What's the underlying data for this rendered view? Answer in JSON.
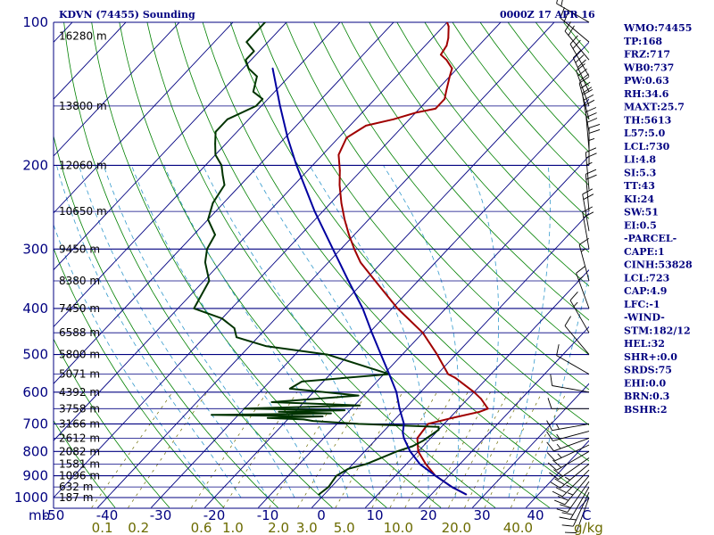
{
  "header": {
    "station": "KDVN (74455) Sounding",
    "time": "0000Z 17 APR 16"
  },
  "indices": [
    "WMO:74455",
    "TP:168",
    "FRZ:717",
    "WB0:737",
    "PW:0.63",
    "RH:34.6",
    "MAXT:25.7",
    "TH:5613",
    "L57:5.0",
    "LCL:730",
    "LI:4.8",
    "SI:5.3",
    "TT:43",
    "KI:24",
    "SW:51",
    "EI:0.5",
    "-PARCEL-",
    "CAPE:1",
    "CINH:53828",
    "LCL:723",
    "CAP:4.9",
    "LFC:-1",
    "-WIND-",
    "STM:182/12",
    "HEL:32",
    "SHR+:0.0",
    "SRDS:75",
    "EHI:0.0",
    "BRN:0.3",
    "BSHR:2"
  ],
  "colors": {
    "isobar": "#000080",
    "isotherm": "#000080",
    "dry_adiabat": "#008000",
    "moist_adiabat": "#3399cc",
    "mixing_ratio": "#6b6b00",
    "temperature": "#a00000",
    "dewpoint": "#003300",
    "parcel": "#0000a0",
    "wind": "#000000"
  },
  "chart_data": {
    "type": "line",
    "diagram": "skew-T log-P",
    "x_unit_label": "mb",
    "pressure_ticks": [
      100,
      200,
      300,
      400,
      500,
      600,
      700,
      800,
      900,
      1000
    ],
    "temperature_ticks": [
      -50,
      -40,
      -30,
      -20,
      -10,
      0,
      10,
      20,
      30,
      40
    ],
    "temperature_tick_labels": [
      "-50",
      "-40",
      "-30",
      "-20",
      "-10",
      "0",
      "10",
      "20",
      "30",
      "40"
    ],
    "temperature_unit": "C",
    "xlim": [
      -50,
      50
    ],
    "ylim": [
      1000,
      100
    ],
    "mixing_ratio_ticks": [
      "0.1",
      "0.2",
      "0.6",
      "1.0",
      "2.0",
      "3.0",
      "5.0",
      "10.0",
      "20.0",
      "40.0"
    ],
    "mixing_ratio_unit": "g/kg",
    "height_labels": [
      {
        "p": 107,
        "label": "16280 m"
      },
      {
        "p": 150,
        "label": "13800 m"
      },
      {
        "p": 200,
        "label": "12060 m"
      },
      {
        "p": 250,
        "label": "10650 m"
      },
      {
        "p": 300,
        "label": "9450 m"
      },
      {
        "p": 350,
        "label": "8380 m"
      },
      {
        "p": 400,
        "label": "7450 m"
      },
      {
        "p": 450,
        "label": "6588 m"
      },
      {
        "p": 500,
        "label": "5800 m"
      },
      {
        "p": 550,
        "label": "5071 m"
      },
      {
        "p": 600,
        "label": "4392 m"
      },
      {
        "p": 650,
        "label": "3758 m"
      },
      {
        "p": 700,
        "label": "3166 m"
      },
      {
        "p": 750,
        "label": "2612 m"
      },
      {
        "p": 800,
        "label": "2082 m"
      },
      {
        "p": 850,
        "label": "1581 m"
      },
      {
        "p": 900,
        "label": "1096 m"
      },
      {
        "p": 950,
        "label": "632 m"
      },
      {
        "p": 1000,
        "label": "187 m"
      }
    ],
    "series": [
      {
        "key": "temperature",
        "points": [
          [
            985,
            26.5
          ],
          [
            950,
            22.5
          ],
          [
            900,
            17.5
          ],
          [
            850,
            13.6
          ],
          [
            800,
            10.0
          ],
          [
            750,
            7.5
          ],
          [
            720,
            7.2
          ],
          [
            700,
            7.0
          ],
          [
            680,
            10.5
          ],
          [
            660,
            14.5
          ],
          [
            650,
            15.5
          ],
          [
            620,
            12.5
          ],
          [
            600,
            10.0
          ],
          [
            560,
            4.0
          ],
          [
            550,
            2.0
          ],
          [
            500,
            -3.5
          ],
          [
            450,
            -10.0
          ],
          [
            400,
            -19.0
          ],
          [
            350,
            -28.0
          ],
          [
            320,
            -34.0
          ],
          [
            300,
            -37.5
          ],
          [
            280,
            -41.0
          ],
          [
            260,
            -44.5
          ],
          [
            240,
            -48.0
          ],
          [
            220,
            -51.5
          ],
          [
            205,
            -54.0
          ],
          [
            190,
            -57.0
          ],
          [
            175,
            -58.5
          ],
          [
            165,
            -57.0
          ],
          [
            160,
            -53.0
          ],
          [
            155,
            -50.0
          ],
          [
            152,
            -47.0
          ],
          [
            145,
            -47.0
          ],
          [
            140,
            -48.0
          ],
          [
            130,
            -50.0
          ],
          [
            125,
            -51.0
          ],
          [
            120,
            -53.5
          ],
          [
            117,
            -55.5
          ],
          [
            112,
            -56.0
          ],
          [
            108,
            -57.0
          ],
          [
            102,
            -59.0
          ],
          [
            100,
            -60.0
          ]
        ]
      },
      {
        "key": "dewpoint",
        "points": [
          [
            985,
            -1.0
          ],
          [
            950,
            -0.5
          ],
          [
            900,
            -1.0
          ],
          [
            870,
            0.0
          ],
          [
            850,
            2.5
          ],
          [
            800,
            6.0
          ],
          [
            780,
            8.0
          ],
          [
            760,
            9.0
          ],
          [
            740,
            9.5
          ],
          [
            720,
            10.0
          ],
          [
            710,
            9.5
          ],
          [
            700,
            -6.0
          ],
          [
            690,
            -15.0
          ],
          [
            685,
            -17.0
          ],
          [
            680,
            -24.0
          ],
          [
            675,
            -14.0
          ],
          [
            670,
            -35.0
          ],
          [
            665,
            -13.0
          ],
          [
            660,
            -23.0
          ],
          [
            655,
            -11.0
          ],
          [
            650,
            -30.0
          ],
          [
            640,
            -9.0
          ],
          [
            630,
            -26.0
          ],
          [
            610,
            -11.0
          ],
          [
            590,
            -25.0
          ],
          [
            570,
            -24.0
          ],
          [
            550,
            -9.0
          ],
          [
            500,
            -24.0
          ],
          [
            480,
            -37.0
          ],
          [
            460,
            -44.0
          ],
          [
            440,
            -46.0
          ],
          [
            420,
            -50.0
          ],
          [
            400,
            -57.0
          ],
          [
            350,
            -59.0
          ],
          [
            320,
            -63.0
          ],
          [
            300,
            -65.0
          ],
          [
            280,
            -66.0
          ],
          [
            260,
            -70.0
          ],
          [
            240,
            -72.0
          ],
          [
            220,
            -73.0
          ],
          [
            210,
            -75.0
          ],
          [
            200,
            -77.0
          ],
          [
            190,
            -80.0
          ],
          [
            180,
            -82.0
          ],
          [
            170,
            -84.0
          ],
          [
            160,
            -84.0
          ],
          [
            150,
            -81.0
          ],
          [
            145,
            -81.0
          ],
          [
            140,
            -84.0
          ],
          [
            130,
            -86.0
          ],
          [
            125,
            -89.0
          ],
          [
            120,
            -91.0
          ],
          [
            115,
            -91.0
          ],
          [
            110,
            -94.0
          ],
          [
            105,
            -94.0
          ],
          [
            100,
            -94.0
          ]
        ]
      },
      {
        "key": "parcel",
        "points": [
          [
            985,
            26.5
          ],
          [
            950,
            22.5
          ],
          [
            900,
            17.5
          ],
          [
            850,
            12.5
          ],
          [
            800,
            8.5
          ],
          [
            750,
            5.0
          ],
          [
            730,
            3.8
          ],
          [
            700,
            2.5
          ],
          [
            650,
            -1.0
          ],
          [
            600,
            -4.5
          ],
          [
            550,
            -9.0
          ],
          [
            500,
            -14.0
          ],
          [
            450,
            -19.5
          ],
          [
            400,
            -25.5
          ],
          [
            350,
            -33.0
          ],
          [
            300,
            -41.5
          ],
          [
            250,
            -51.5
          ],
          [
            200,
            -63.0
          ],
          [
            175,
            -69.5
          ],
          [
            150,
            -76.5
          ],
          [
            125,
            -84.5
          ]
        ]
      }
    ],
    "wind_barbs": [
      {
        "p": 1000,
        "dir": 200,
        "spd": 10
      },
      {
        "p": 975,
        "dir": 205,
        "spd": 15
      },
      {
        "p": 950,
        "dir": 210,
        "spd": 20
      },
      {
        "p": 925,
        "dir": 215,
        "spd": 20
      },
      {
        "p": 900,
        "dir": 220,
        "spd": 25
      },
      {
        "p": 875,
        "dir": 225,
        "spd": 25
      },
      {
        "p": 850,
        "dir": 230,
        "spd": 25
      },
      {
        "p": 825,
        "dir": 235,
        "spd": 20
      },
      {
        "p": 800,
        "dir": 240,
        "spd": 20
      },
      {
        "p": 775,
        "dir": 245,
        "spd": 15
      },
      {
        "p": 750,
        "dir": 250,
        "spd": 15
      },
      {
        "p": 725,
        "dir": 255,
        "spd": 15
      },
      {
        "p": 700,
        "dir": 260,
        "spd": 15
      },
      {
        "p": 650,
        "dir": 270,
        "spd": 10
      },
      {
        "p": 600,
        "dir": 280,
        "spd": 10
      },
      {
        "p": 550,
        "dir": 300,
        "spd": 10
      },
      {
        "p": 500,
        "dir": 320,
        "spd": 10
      },
      {
        "p": 450,
        "dir": 330,
        "spd": 15
      },
      {
        "p": 400,
        "dir": 340,
        "spd": 15
      },
      {
        "p": 350,
        "dir": 345,
        "spd": 15
      },
      {
        "p": 300,
        "dir": 350,
        "spd": 20
      },
      {
        "p": 275,
        "dir": 350,
        "spd": 20
      },
      {
        "p": 250,
        "dir": 355,
        "spd": 20
      },
      {
        "p": 225,
        "dir": 355,
        "spd": 25
      },
      {
        "p": 200,
        "dir": 0,
        "spd": 25
      },
      {
        "p": 185,
        "dir": 355,
        "spd": 30
      },
      {
        "p": 170,
        "dir": 350,
        "spd": 30
      },
      {
        "p": 160,
        "dir": 345,
        "spd": 30
      },
      {
        "p": 150,
        "dir": 340,
        "spd": 35
      },
      {
        "p": 140,
        "dir": 335,
        "spd": 30
      },
      {
        "p": 130,
        "dir": 330,
        "spd": 25
      },
      {
        "p": 120,
        "dir": 320,
        "spd": 20
      },
      {
        "p": 110,
        "dir": 310,
        "spd": 20
      },
      {
        "p": 100,
        "dir": 300,
        "spd": 20
      }
    ]
  }
}
